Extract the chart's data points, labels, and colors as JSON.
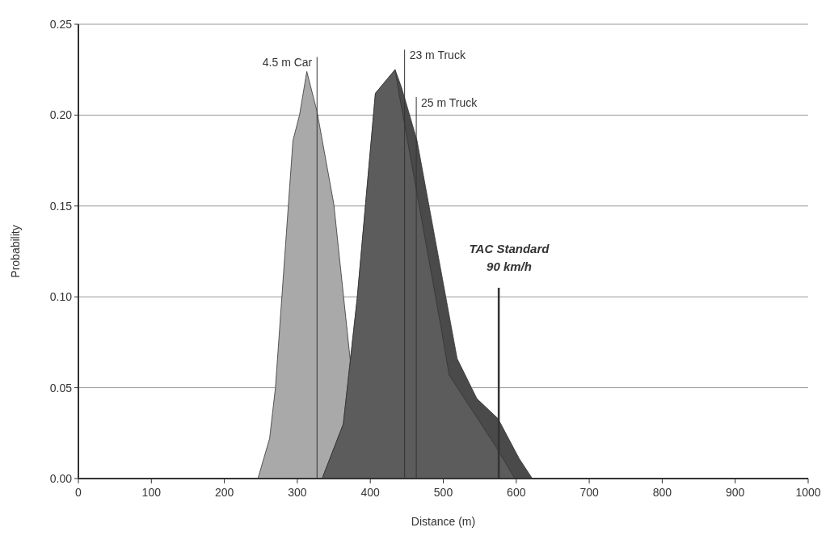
{
  "chart_data": {
    "type": "area",
    "xlabel": "Distance (m)",
    "ylabel": "Probability",
    "xlim": [
      0,
      1000
    ],
    "xticks": [
      0,
      100,
      200,
      300,
      400,
      500,
      600,
      700,
      800,
      900,
      1000
    ],
    "ylim": [
      0,
      0.25
    ],
    "yticks": [
      {
        "value": 0,
        "label": "0.00"
      },
      {
        "value": 0.05,
        "label": "0.05"
      },
      {
        "value": 0.1,
        "label": "0.10"
      },
      {
        "value": 0.15,
        "label": "0.15"
      },
      {
        "value": 0.2,
        "label": "0.20"
      },
      {
        "value": 0.25,
        "label": "0.25"
      }
    ],
    "grid": "y",
    "series": [
      {
        "color": "#a9a9a9",
        "x": [
          246,
          262,
          270,
          294,
          303,
          313,
          327,
          350,
          371,
          390
        ],
        "values": [
          0,
          0.022,
          0.05,
          0.186,
          0.2,
          0.224,
          0.202,
          0.151,
          0.071,
          0
        ]
      },
      {
        "color": "#4a4a4a",
        "x": [
          334,
          363,
          382,
          407,
          434,
          443,
          464,
          519,
          546,
          575,
          604,
          622
        ],
        "values": [
          0,
          0.03,
          0.099,
          0.212,
          0.225,
          0.215,
          0.186,
          0.066,
          0.044,
          0.033,
          0.011,
          0
        ]
      },
      {
        "color": "#5c5c5c",
        "x": [
          334,
          363,
          382,
          407,
          434,
          438,
          497,
          508,
          573,
          598
        ],
        "values": [
          0,
          0.03,
          0.099,
          0.212,
          0.225,
          0.215,
          0.083,
          0.057,
          0.017,
          0
        ]
      }
    ],
    "ref_lines": [
      {
        "axis": "x",
        "value": 327,
        "label": "4.5 m Car"
      },
      {
        "axis": "x",
        "value": 447,
        "label": "23 m Truck"
      },
      {
        "axis": "x",
        "value": 463,
        "label": "25 m Truck"
      },
      {
        "axis": "x",
        "value": 576,
        "label": "TAC Standard 90 km/h"
      }
    ]
  }
}
